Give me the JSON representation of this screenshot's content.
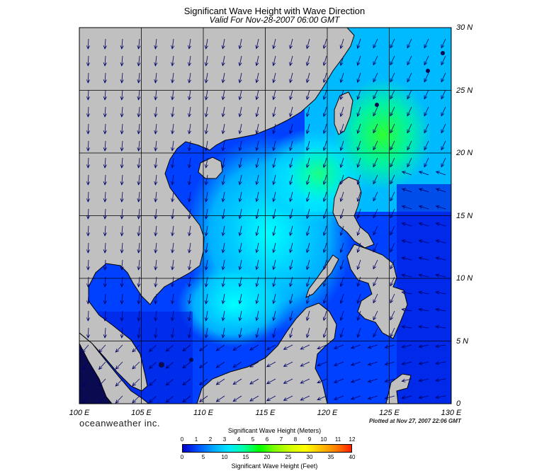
{
  "header": {
    "title": "Significant Wave Height with Wave Direction",
    "subtitle": "Valid For Nov-28-2007 06:00 GMT"
  },
  "axes": {
    "lon_labels": [
      "100 E",
      "105 E",
      "110 E",
      "115 E",
      "120 E",
      "125 E",
      "130 E"
    ],
    "lat_labels": [
      "30 N",
      "25 N",
      "20 N",
      "15 N",
      "10 N",
      "5 N",
      "0"
    ],
    "lon_range": [
      100,
      130
    ],
    "lat_range": [
      0,
      30
    ],
    "grid_step_deg": 5
  },
  "footer": {
    "brand": "oceanweather inc.",
    "plotted": "Plotted at Nov 27, 2007 22:06 GMT"
  },
  "legend": {
    "meters_title": "Significant Wave Height (Meters)",
    "feet_title": "Significant Wave Height (Feet)",
    "meters_ticks": [
      "0",
      "1",
      "2",
      "3",
      "4",
      "5",
      "6",
      "7",
      "8",
      "9",
      "10",
      "11",
      "12"
    ],
    "feet_ticks": [
      "0",
      "5",
      "10",
      "15",
      "20",
      "25",
      "30",
      "35",
      "40"
    ],
    "colors": [
      "#0000c8",
      "#0050ff",
      "#00a8ff",
      "#00e8ff",
      "#00ffa0",
      "#00ff00",
      "#80ff00",
      "#d0ff00",
      "#ffff00",
      "#ffc000",
      "#ff8000",
      "#ff2000"
    ]
  },
  "style": {
    "land_color": "#c0c0c0",
    "coast_color": "#000000",
    "arrow_color": "#000066"
  }
}
